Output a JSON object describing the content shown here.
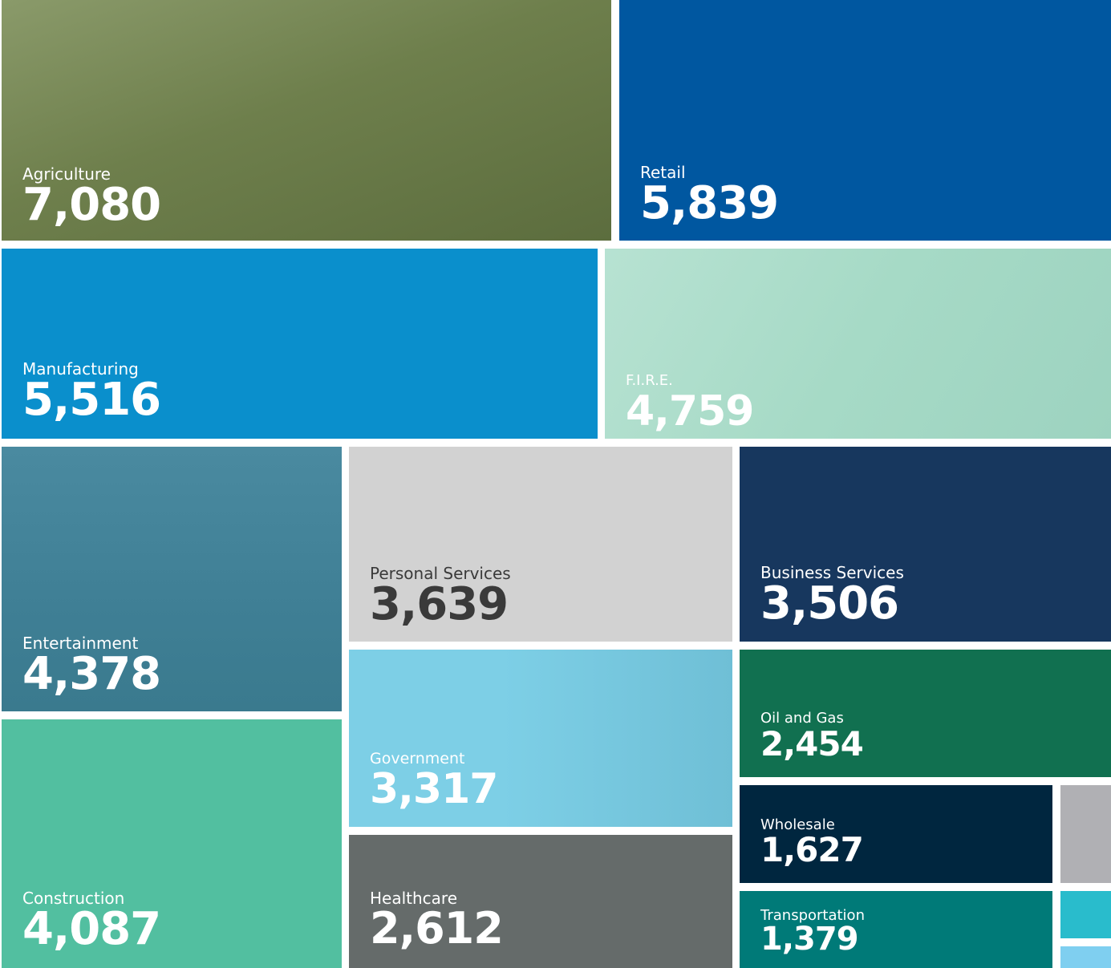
{
  "chart_data": {
    "type": "treemap",
    "categories": [
      "Agriculture",
      "Retail",
      "Manufacturing",
      "F.I.R.E.",
      "Entertainment",
      "Personal Services",
      "Business Services",
      "Government",
      "Oil and Gas",
      "Construction",
      "Healthcare",
      "Wholesale",
      "Transportation"
    ],
    "values": [
      7080,
      5839,
      5516,
      4759,
      4378,
      3639,
      3506,
      3317,
      2454,
      4087,
      2612,
      1627,
      1379
    ],
    "value_labels": [
      "7,080",
      "5,839",
      "5,516",
      "4,759",
      "4,378",
      "3,639",
      "3,506",
      "3,317",
      "2,454",
      "4,087",
      "2,612",
      "1,627",
      "1,379"
    ],
    "colors": [
      "#6e7f4c",
      "#0057a0",
      "#0a8fcc",
      "#a6dac6",
      "#3f7f95",
      "#d2d2d2",
      "#17375e",
      "#7dcfe6",
      "#117050",
      "#52bfa0",
      "#656b6a",
      "#00263f",
      "#007a78"
    ]
  }
}
